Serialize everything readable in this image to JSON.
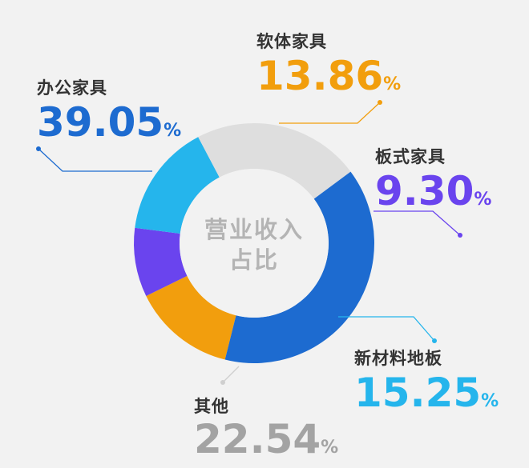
{
  "chart_data": {
    "type": "pie",
    "center_label": [
      "营业收入",
      "占比"
    ],
    "unit": "%",
    "slices": [
      {
        "label": "办公家具",
        "value": 39.05,
        "value_text": "39.05",
        "color": "#1d6bd0"
      },
      {
        "label": "软体家具",
        "value": 13.86,
        "value_text": "13.86",
        "color": "#f29e0d"
      },
      {
        "label": "板式家具",
        "value": 9.3,
        "value_text": "9.30",
        "color": "#6a44ee"
      },
      {
        "label": "新材料地板",
        "value": 15.25,
        "value_text": "15.25",
        "color": "#25b5ec"
      },
      {
        "label": "其他",
        "value": 22.54,
        "value_text": "22.54",
        "color": "#dedede"
      }
    ],
    "label_colors": {
      "办公家具": "#1d6bd0",
      "软体家具": "#f29e0d",
      "板式家具": "#6a44ee",
      "新材料地板": "#25b5ec",
      "其他": "#a3a3a3"
    }
  }
}
